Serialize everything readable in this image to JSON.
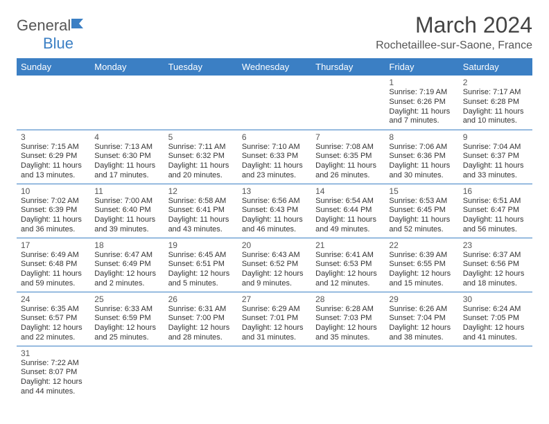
{
  "logo": {
    "word1": "General",
    "word2": "Blue"
  },
  "title": "March 2024",
  "location": "Rochetaillee-sur-Saone, France",
  "colors": {
    "header_bg": "#3b7fc4",
    "header_text": "#ffffff",
    "rule": "#3b7fc4",
    "body_text": "#333333",
    "page_bg": "#ffffff"
  },
  "layout": {
    "columns": 7,
    "rows": 6,
    "cell_font_size_pt": 8,
    "daynum_font_size_pt": 9,
    "header_font_size_pt": 10
  },
  "weekdays": [
    "Sunday",
    "Monday",
    "Tuesday",
    "Wednesday",
    "Thursday",
    "Friday",
    "Saturday"
  ],
  "weeks": [
    [
      null,
      null,
      null,
      null,
      null,
      {
        "d": "1",
        "sr": "Sunrise: 7:19 AM",
        "ss": "Sunset: 6:26 PM",
        "dl1": "Daylight: 11 hours",
        "dl2": "and 7 minutes."
      },
      {
        "d": "2",
        "sr": "Sunrise: 7:17 AM",
        "ss": "Sunset: 6:28 PM",
        "dl1": "Daylight: 11 hours",
        "dl2": "and 10 minutes."
      }
    ],
    [
      {
        "d": "3",
        "sr": "Sunrise: 7:15 AM",
        "ss": "Sunset: 6:29 PM",
        "dl1": "Daylight: 11 hours",
        "dl2": "and 13 minutes."
      },
      {
        "d": "4",
        "sr": "Sunrise: 7:13 AM",
        "ss": "Sunset: 6:30 PM",
        "dl1": "Daylight: 11 hours",
        "dl2": "and 17 minutes."
      },
      {
        "d": "5",
        "sr": "Sunrise: 7:11 AM",
        "ss": "Sunset: 6:32 PM",
        "dl1": "Daylight: 11 hours",
        "dl2": "and 20 minutes."
      },
      {
        "d": "6",
        "sr": "Sunrise: 7:10 AM",
        "ss": "Sunset: 6:33 PM",
        "dl1": "Daylight: 11 hours",
        "dl2": "and 23 minutes."
      },
      {
        "d": "7",
        "sr": "Sunrise: 7:08 AM",
        "ss": "Sunset: 6:35 PM",
        "dl1": "Daylight: 11 hours",
        "dl2": "and 26 minutes."
      },
      {
        "d": "8",
        "sr": "Sunrise: 7:06 AM",
        "ss": "Sunset: 6:36 PM",
        "dl1": "Daylight: 11 hours",
        "dl2": "and 30 minutes."
      },
      {
        "d": "9",
        "sr": "Sunrise: 7:04 AM",
        "ss": "Sunset: 6:37 PM",
        "dl1": "Daylight: 11 hours",
        "dl2": "and 33 minutes."
      }
    ],
    [
      {
        "d": "10",
        "sr": "Sunrise: 7:02 AM",
        "ss": "Sunset: 6:39 PM",
        "dl1": "Daylight: 11 hours",
        "dl2": "and 36 minutes."
      },
      {
        "d": "11",
        "sr": "Sunrise: 7:00 AM",
        "ss": "Sunset: 6:40 PM",
        "dl1": "Daylight: 11 hours",
        "dl2": "and 39 minutes."
      },
      {
        "d": "12",
        "sr": "Sunrise: 6:58 AM",
        "ss": "Sunset: 6:41 PM",
        "dl1": "Daylight: 11 hours",
        "dl2": "and 43 minutes."
      },
      {
        "d": "13",
        "sr": "Sunrise: 6:56 AM",
        "ss": "Sunset: 6:43 PM",
        "dl1": "Daylight: 11 hours",
        "dl2": "and 46 minutes."
      },
      {
        "d": "14",
        "sr": "Sunrise: 6:54 AM",
        "ss": "Sunset: 6:44 PM",
        "dl1": "Daylight: 11 hours",
        "dl2": "and 49 minutes."
      },
      {
        "d": "15",
        "sr": "Sunrise: 6:53 AM",
        "ss": "Sunset: 6:45 PM",
        "dl1": "Daylight: 11 hours",
        "dl2": "and 52 minutes."
      },
      {
        "d": "16",
        "sr": "Sunrise: 6:51 AM",
        "ss": "Sunset: 6:47 PM",
        "dl1": "Daylight: 11 hours",
        "dl2": "and 56 minutes."
      }
    ],
    [
      {
        "d": "17",
        "sr": "Sunrise: 6:49 AM",
        "ss": "Sunset: 6:48 PM",
        "dl1": "Daylight: 11 hours",
        "dl2": "and 59 minutes."
      },
      {
        "d": "18",
        "sr": "Sunrise: 6:47 AM",
        "ss": "Sunset: 6:49 PM",
        "dl1": "Daylight: 12 hours",
        "dl2": "and 2 minutes."
      },
      {
        "d": "19",
        "sr": "Sunrise: 6:45 AM",
        "ss": "Sunset: 6:51 PM",
        "dl1": "Daylight: 12 hours",
        "dl2": "and 5 minutes."
      },
      {
        "d": "20",
        "sr": "Sunrise: 6:43 AM",
        "ss": "Sunset: 6:52 PM",
        "dl1": "Daylight: 12 hours",
        "dl2": "and 9 minutes."
      },
      {
        "d": "21",
        "sr": "Sunrise: 6:41 AM",
        "ss": "Sunset: 6:53 PM",
        "dl1": "Daylight: 12 hours",
        "dl2": "and 12 minutes."
      },
      {
        "d": "22",
        "sr": "Sunrise: 6:39 AM",
        "ss": "Sunset: 6:55 PM",
        "dl1": "Daylight: 12 hours",
        "dl2": "and 15 minutes."
      },
      {
        "d": "23",
        "sr": "Sunrise: 6:37 AM",
        "ss": "Sunset: 6:56 PM",
        "dl1": "Daylight: 12 hours",
        "dl2": "and 18 minutes."
      }
    ],
    [
      {
        "d": "24",
        "sr": "Sunrise: 6:35 AM",
        "ss": "Sunset: 6:57 PM",
        "dl1": "Daylight: 12 hours",
        "dl2": "and 22 minutes."
      },
      {
        "d": "25",
        "sr": "Sunrise: 6:33 AM",
        "ss": "Sunset: 6:59 PM",
        "dl1": "Daylight: 12 hours",
        "dl2": "and 25 minutes."
      },
      {
        "d": "26",
        "sr": "Sunrise: 6:31 AM",
        "ss": "Sunset: 7:00 PM",
        "dl1": "Daylight: 12 hours",
        "dl2": "and 28 minutes."
      },
      {
        "d": "27",
        "sr": "Sunrise: 6:29 AM",
        "ss": "Sunset: 7:01 PM",
        "dl1": "Daylight: 12 hours",
        "dl2": "and 31 minutes."
      },
      {
        "d": "28",
        "sr": "Sunrise: 6:28 AM",
        "ss": "Sunset: 7:03 PM",
        "dl1": "Daylight: 12 hours",
        "dl2": "and 35 minutes."
      },
      {
        "d": "29",
        "sr": "Sunrise: 6:26 AM",
        "ss": "Sunset: 7:04 PM",
        "dl1": "Daylight: 12 hours",
        "dl2": "and 38 minutes."
      },
      {
        "d": "30",
        "sr": "Sunrise: 6:24 AM",
        "ss": "Sunset: 7:05 PM",
        "dl1": "Daylight: 12 hours",
        "dl2": "and 41 minutes."
      }
    ],
    [
      {
        "d": "31",
        "sr": "Sunrise: 7:22 AM",
        "ss": "Sunset: 8:07 PM",
        "dl1": "Daylight: 12 hours",
        "dl2": "and 44 minutes."
      },
      null,
      null,
      null,
      null,
      null,
      null
    ]
  ]
}
